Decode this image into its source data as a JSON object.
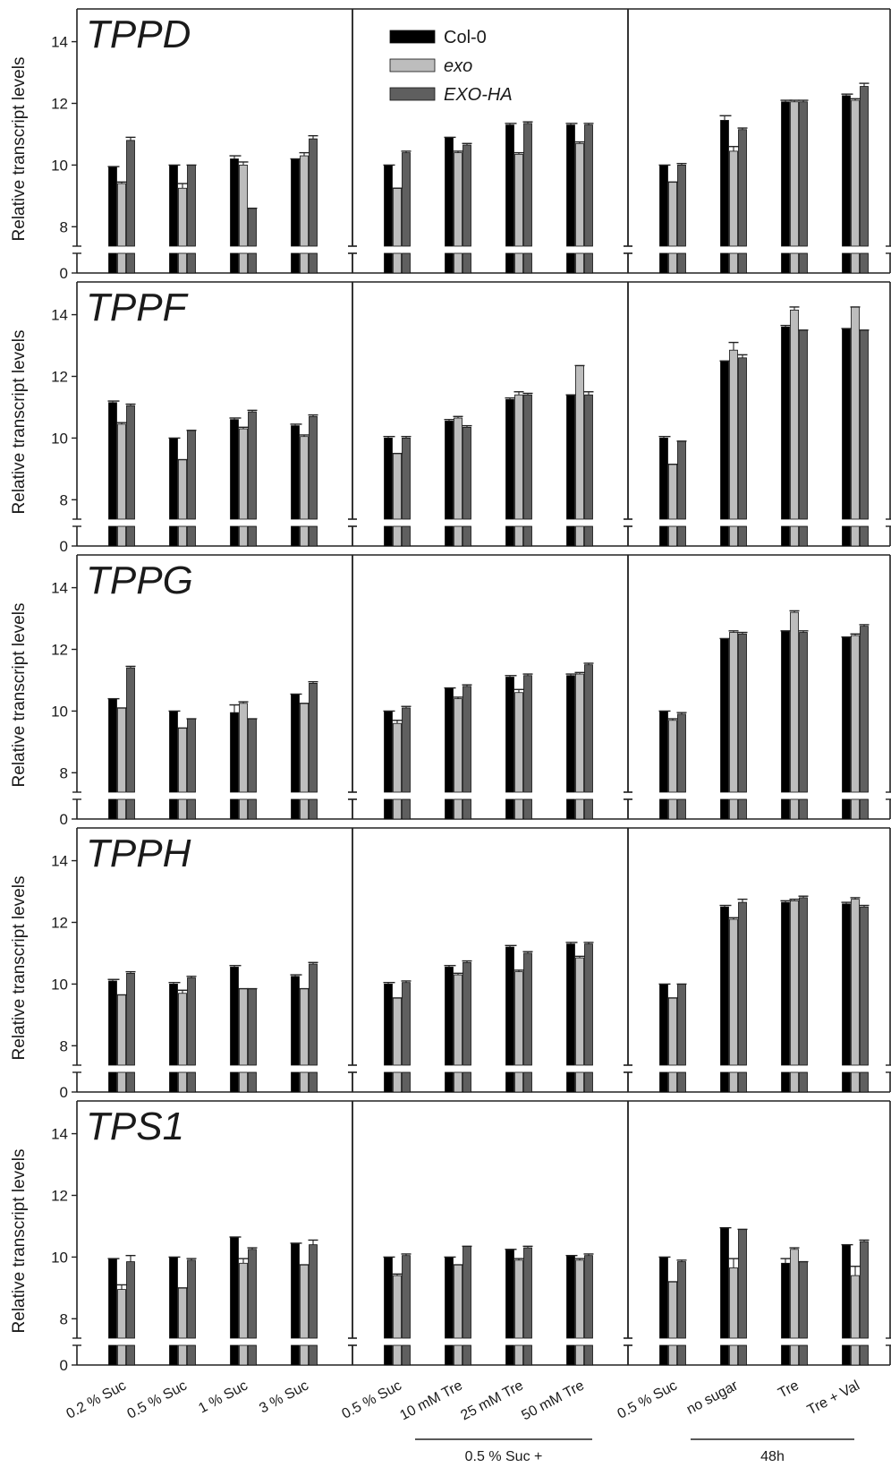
{
  "chart_data": {
    "type": "bar",
    "ylabel": "Relative transcript levels",
    "ylim": [
      7.4,
      14.8
    ],
    "yticks": [
      8,
      10,
      12,
      14
    ],
    "ybreak": true,
    "ybreak_bottom_tick": "0",
    "grid": false,
    "legend_position": "top-center (middle column, top row)",
    "series": [
      {
        "name": "Col-0",
        "color": "#000000",
        "italic": false
      },
      {
        "name": "exo",
        "color": "#bdbdbd",
        "italic": true
      },
      {
        "name": "EXO-HA",
        "color": "#5f5f5f",
        "italic": true
      }
    ],
    "columns": [
      {
        "categories": [
          "0.2 % Suc",
          "0.5 % Suc",
          "1 % Suc",
          "3 % Suc"
        ],
        "group_label": ""
      },
      {
        "categories": [
          "0.5 % Suc",
          "10 mM Tre",
          "25 mM Tre",
          "50 mM Tre"
        ],
        "group_label": "0.5 % Suc +"
      },
      {
        "categories": [
          "0.5 % Suc",
          "no sugar",
          "Tre",
          "Tre + Val"
        ],
        "group_label": "48h"
      }
    ],
    "panels": [
      {
        "gene": "TPPD",
        "values": [
          [
            [
              9.95,
              9.4,
              10.8
            ],
            [
              10.0,
              9.25,
              10.0
            ],
            [
              10.2,
              10.0,
              8.6
            ],
            [
              10.2,
              10.3,
              10.85
            ]
          ],
          [
            [
              10.0,
              9.25,
              10.4
            ],
            [
              10.9,
              10.4,
              10.65
            ],
            [
              11.3,
              10.35,
              11.35
            ],
            [
              11.3,
              10.7,
              11.3
            ]
          ],
          [
            [
              10.0,
              9.45,
              10.0
            ],
            [
              11.45,
              10.45,
              11.15
            ],
            [
              12.05,
              12.05,
              12.05
            ],
            [
              12.25,
              12.1,
              12.55
            ]
          ]
        ],
        "errors": [
          [
            [
              0.0,
              0.05,
              0.1
            ],
            [
              0.0,
              0.15,
              0.0
            ],
            [
              0.1,
              0.1,
              0.0
            ],
            [
              0.0,
              0.1,
              0.1
            ]
          ],
          [
            [
              0.0,
              0.0,
              0.05
            ],
            [
              0.0,
              0.05,
              0.05
            ],
            [
              0.05,
              0.05,
              0.05
            ],
            [
              0.05,
              0.05,
              0.05
            ]
          ],
          [
            [
              0.0,
              0.0,
              0.05
            ],
            [
              0.15,
              0.15,
              0.05
            ],
            [
              0.05,
              0.05,
              0.05
            ],
            [
              0.05,
              0.05,
              0.1
            ]
          ]
        ]
      },
      {
        "gene": "TPPF",
        "values": [
          [
            [
              11.15,
              10.45,
              11.05
            ],
            [
              10.0,
              9.3,
              10.25
            ],
            [
              10.6,
              10.3,
              10.85
            ],
            [
              10.4,
              10.05,
              10.7
            ]
          ],
          [
            [
              10.0,
              9.5,
              10.0
            ],
            [
              10.55,
              10.65,
              10.35
            ],
            [
              11.25,
              11.4,
              11.4
            ],
            [
              11.4,
              12.35,
              11.4
            ]
          ],
          [
            [
              10.0,
              9.15,
              9.9
            ],
            [
              12.5,
              12.85,
              12.6
            ],
            [
              13.6,
              14.15,
              13.5
            ],
            [
              13.55,
              14.25,
              13.5
            ]
          ]
        ],
        "errors": [
          [
            [
              0.05,
              0.05,
              0.05
            ],
            [
              0.0,
              0.0,
              0.0
            ],
            [
              0.05,
              0.05,
              0.05
            ],
            [
              0.05,
              0.05,
              0.05
            ]
          ],
          [
            [
              0.05,
              0.0,
              0.05
            ],
            [
              0.05,
              0.05,
              0.05
            ],
            [
              0.05,
              0.1,
              0.05
            ],
            [
              0.0,
              0.0,
              0.1
            ]
          ],
          [
            [
              0.05,
              0.0,
              0.0
            ],
            [
              0.0,
              0.25,
              0.1
            ],
            [
              0.05,
              0.1,
              0.0
            ],
            [
              0.0,
              0.0,
              0.0
            ]
          ]
        ]
      },
      {
        "gene": "TPPG",
        "values": [
          [
            [
              10.4,
              10.1,
              11.4
            ],
            [
              10.0,
              9.45,
              9.75
            ],
            [
              9.95,
              10.25,
              9.75
            ],
            [
              10.55,
              10.25,
              10.9
            ]
          ],
          [
            [
              10.0,
              9.6,
              10.1
            ],
            [
              10.75,
              10.4,
              10.8
            ],
            [
              11.1,
              10.6,
              11.15
            ],
            [
              11.15,
              11.2,
              11.5
            ]
          ],
          [
            [
              10.0,
              9.7,
              9.9
            ],
            [
              12.35,
              12.55,
              12.5
            ],
            [
              12.6,
              13.2,
              12.55
            ],
            [
              12.4,
              12.45,
              12.75
            ]
          ]
        ],
        "errors": [
          [
            [
              0.0,
              0.0,
              0.05
            ],
            [
              0.0,
              0.0,
              0.0
            ],
            [
              0.25,
              0.05,
              0.0
            ],
            [
              0.0,
              0.0,
              0.05
            ]
          ],
          [
            [
              0.0,
              0.1,
              0.05
            ],
            [
              0.0,
              0.05,
              0.05
            ],
            [
              0.05,
              0.1,
              0.05
            ],
            [
              0.05,
              0.05,
              0.05
            ]
          ],
          [
            [
              0.0,
              0.05,
              0.05
            ],
            [
              0.0,
              0.05,
              0.05
            ],
            [
              0.0,
              0.05,
              0.05
            ],
            [
              0.0,
              0.05,
              0.05
            ]
          ]
        ]
      },
      {
        "gene": "TPPH",
        "values": [
          [
            [
              10.1,
              9.65,
              10.35
            ],
            [
              10.0,
              9.7,
              10.2
            ],
            [
              10.55,
              9.85,
              9.85
            ],
            [
              10.25,
              9.85,
              10.65
            ]
          ],
          [
            [
              10.0,
              9.55,
              10.05
            ],
            [
              10.55,
              10.3,
              10.7
            ],
            [
              11.2,
              10.4,
              11.0
            ],
            [
              11.3,
              10.85,
              11.3
            ]
          ],
          [
            [
              10.0,
              9.55,
              10.0
            ],
            [
              12.5,
              12.1,
              12.65
            ],
            [
              12.65,
              12.7,
              12.8
            ],
            [
              12.6,
              12.75,
              12.5
            ]
          ]
        ],
        "errors": [
          [
            [
              0.05,
              0.0,
              0.05
            ],
            [
              0.05,
              0.1,
              0.05
            ],
            [
              0.05,
              0.0,
              0.0
            ],
            [
              0.05,
              0.0,
              0.05
            ]
          ],
          [
            [
              0.05,
              0.0,
              0.05
            ],
            [
              0.05,
              0.05,
              0.05
            ],
            [
              0.05,
              0.05,
              0.05
            ],
            [
              0.05,
              0.05,
              0.05
            ]
          ],
          [
            [
              0.0,
              0.0,
              0.0
            ],
            [
              0.05,
              0.05,
              0.1
            ],
            [
              0.05,
              0.05,
              0.05
            ],
            [
              0.05,
              0.05,
              0.05
            ]
          ]
        ]
      },
      {
        "gene": "TPS1",
        "values": [
          [
            [
              9.95,
              8.95,
              9.85
            ],
            [
              10.0,
              9.0,
              9.9
            ],
            [
              10.65,
              9.8,
              10.25
            ],
            [
              10.45,
              9.75,
              10.4
            ]
          ],
          [
            [
              10.0,
              9.4,
              10.05
            ],
            [
              10.0,
              9.75,
              10.35
            ],
            [
              10.25,
              9.9,
              10.3
            ],
            [
              10.05,
              9.9,
              10.05
            ]
          ],
          [
            [
              10.0,
              9.2,
              9.85
            ],
            [
              10.95,
              9.65,
              10.9
            ],
            [
              9.8,
              10.25,
              9.85
            ],
            [
              10.4,
              9.4,
              10.5
            ]
          ]
        ],
        "errors": [
          [
            [
              0.0,
              0.15,
              0.2
            ],
            [
              0.0,
              0.0,
              0.05
            ],
            [
              0.0,
              0.15,
              0.05
            ],
            [
              0.0,
              0.0,
              0.15
            ]
          ],
          [
            [
              0.0,
              0.05,
              0.05
            ],
            [
              0.0,
              0.0,
              0.0
            ],
            [
              0.0,
              0.05,
              0.05
            ],
            [
              0.0,
              0.05,
              0.05
            ]
          ],
          [
            [
              0.0,
              0.0,
              0.05
            ],
            [
              0.0,
              0.3,
              0.0
            ],
            [
              0.15,
              0.05,
              0.0
            ],
            [
              0.0,
              0.3,
              0.05
            ]
          ]
        ]
      }
    ]
  }
}
